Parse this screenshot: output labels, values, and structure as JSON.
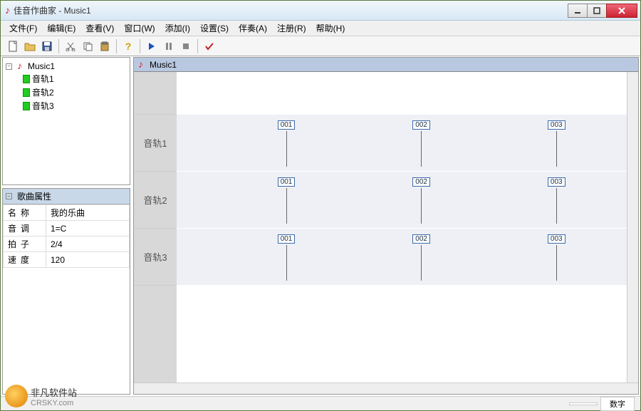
{
  "titlebar": {
    "title": "佳音作曲家 - Music1"
  },
  "menus": [
    {
      "label": "文件(F)"
    },
    {
      "label": "编辑(E)"
    },
    {
      "label": "查看(V)"
    },
    {
      "label": "窗口(W)"
    },
    {
      "label": "添加(I)"
    },
    {
      "label": "设置(S)"
    },
    {
      "label": "伴奏(A)"
    },
    {
      "label": "注册(R)"
    },
    {
      "label": "帮助(H)"
    }
  ],
  "tree": {
    "root": "Music1",
    "items": [
      {
        "label": "音轨1"
      },
      {
        "label": "音轨2"
      },
      {
        "label": "音轨3"
      }
    ]
  },
  "props": {
    "header": "歌曲属性",
    "rows": [
      {
        "k": "名称",
        "v": "我的乐曲"
      },
      {
        "k": "音调",
        "v": "1=C"
      },
      {
        "k": "拍子",
        "v": "2/4"
      },
      {
        "k": "速度",
        "v": "120"
      }
    ]
  },
  "editor": {
    "title": "Music1",
    "tracks": [
      {
        "label": "音轨1"
      },
      {
        "label": "音轨2"
      },
      {
        "label": "音轨3"
      }
    ],
    "measures": [
      "001",
      "002",
      "003"
    ],
    "measure_positions_pct": [
      22,
      52,
      82
    ],
    "colors": {
      "track_bg": "#eef0f6",
      "label_bg": "#d8d8d8",
      "mark_border": "#3a6aaa"
    }
  },
  "status": {
    "mode": "数字"
  },
  "watermark": {
    "text1": "非凡软件站",
    "text2": "CRSKY.com"
  }
}
